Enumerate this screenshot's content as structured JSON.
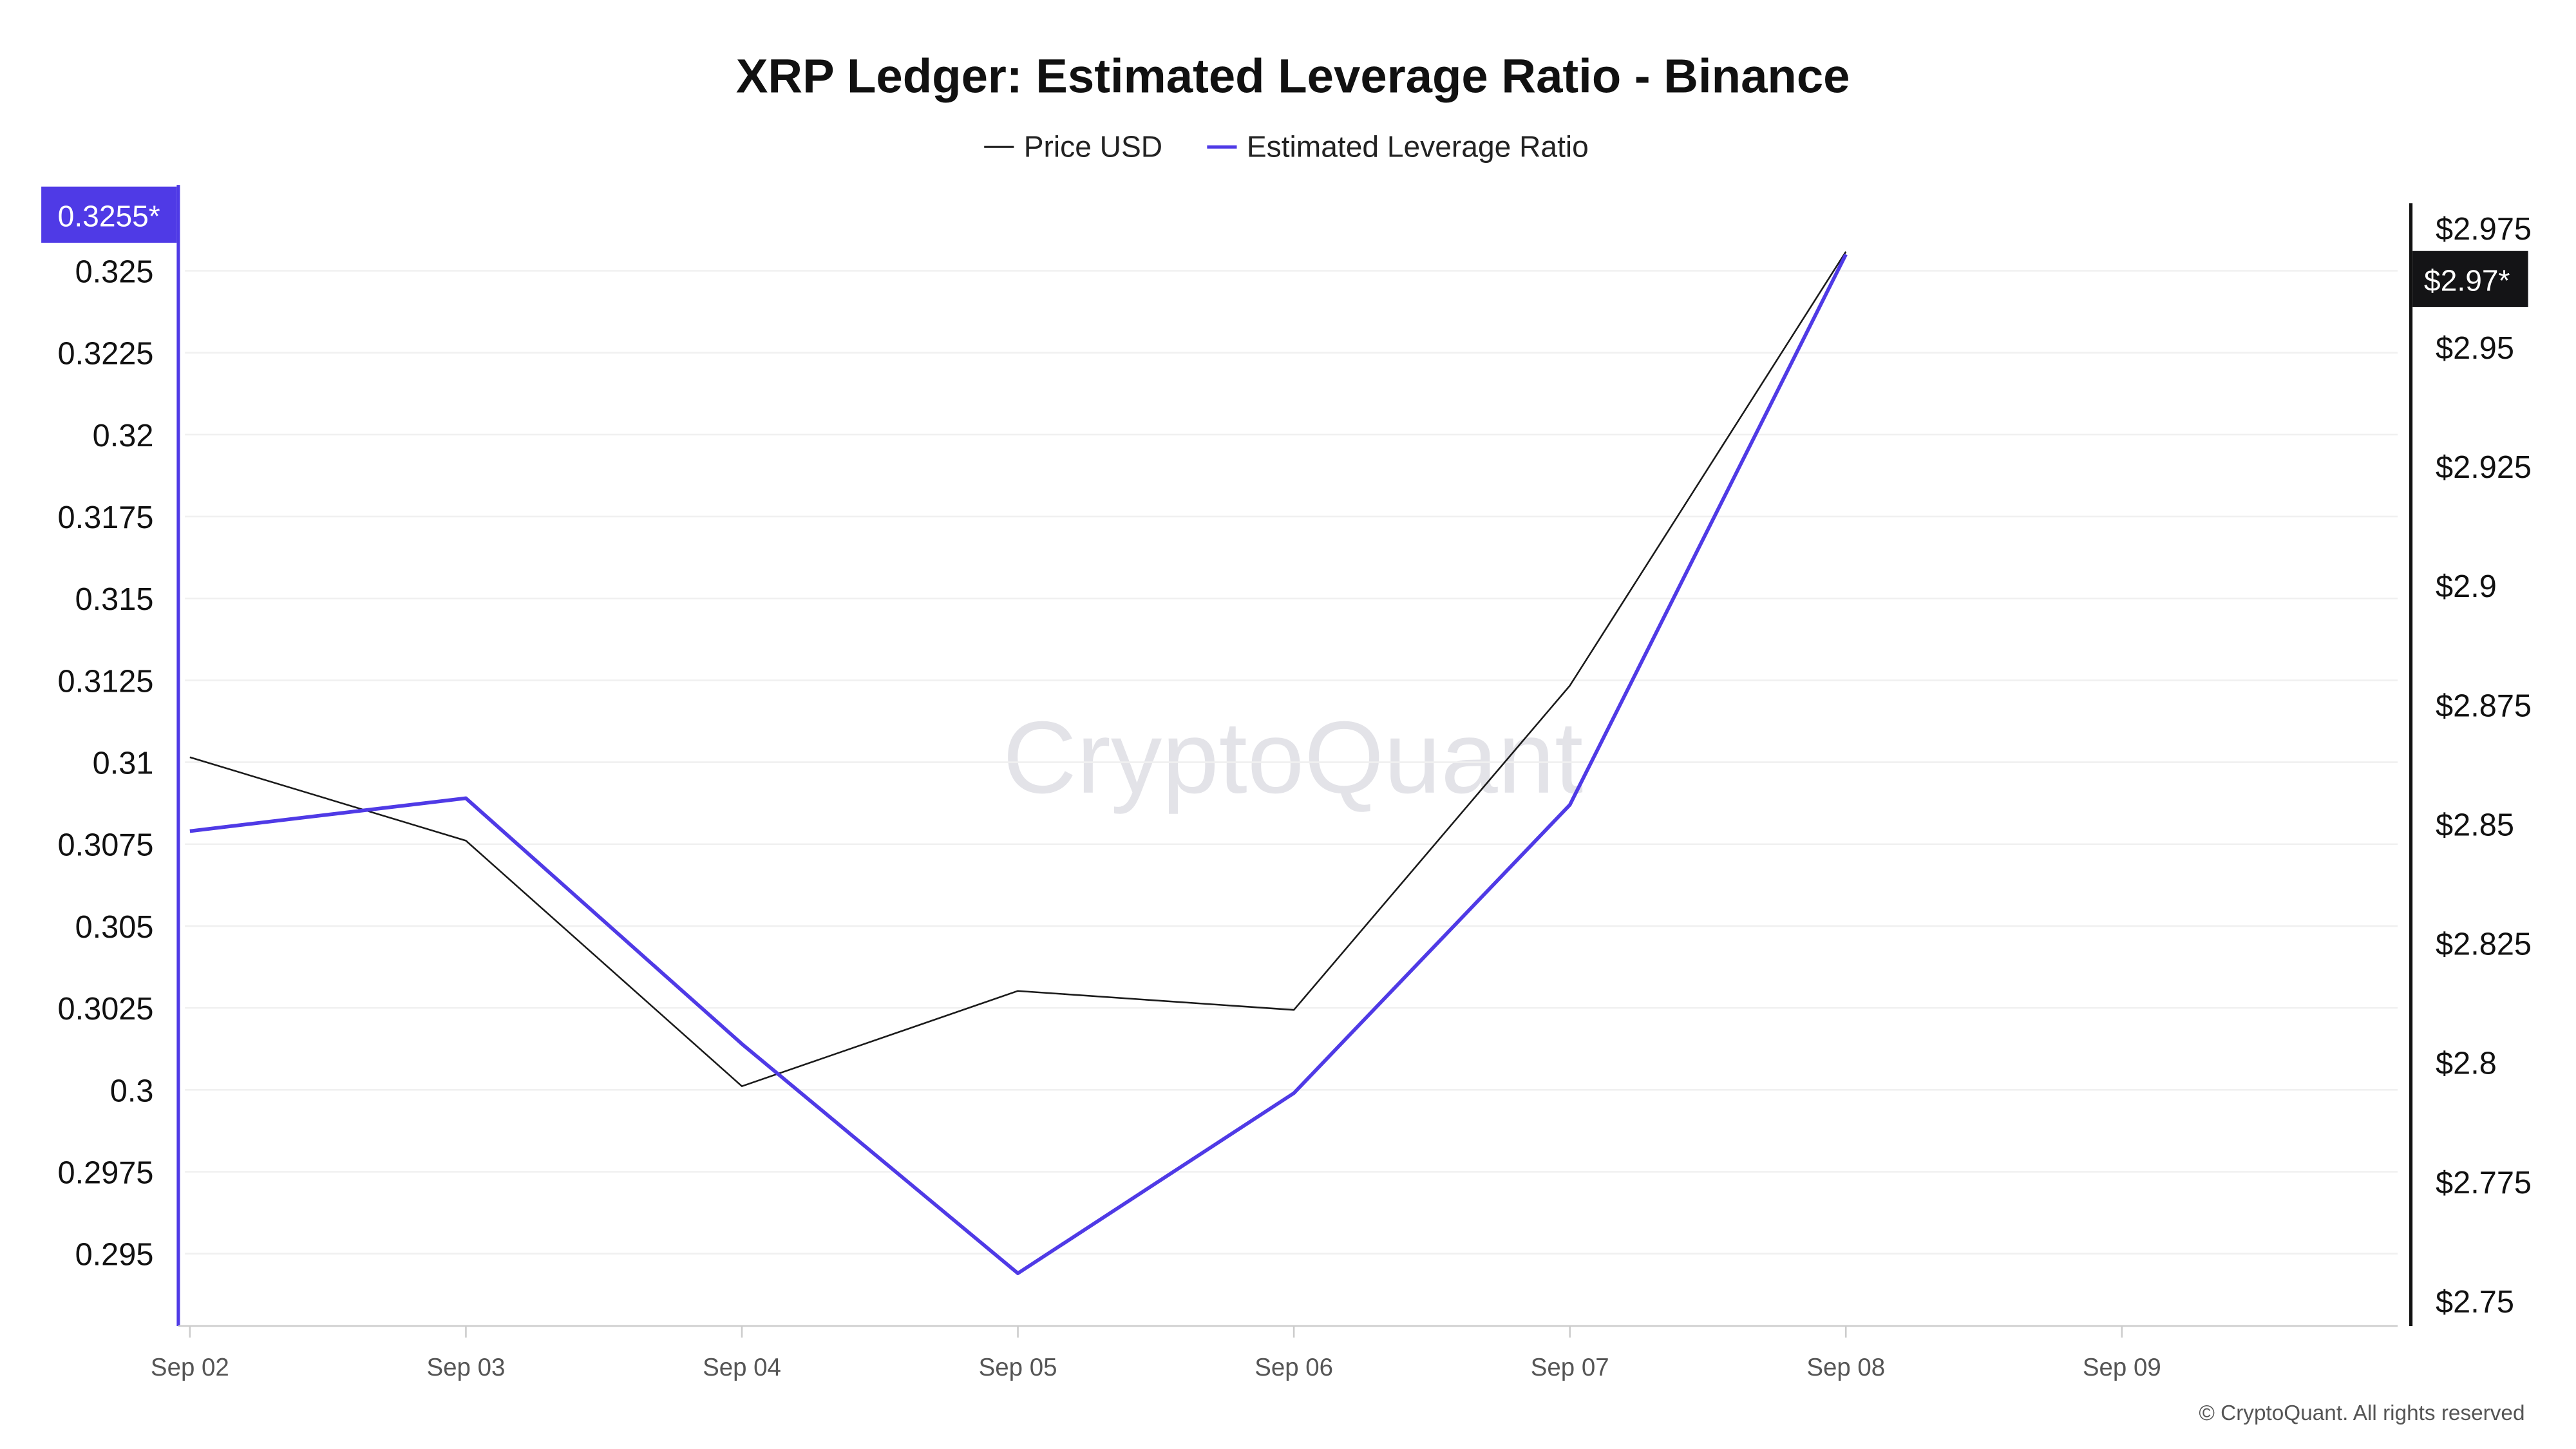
{
  "chart_data": {
    "type": "line",
    "title": "XRP Ledger: Estimated Leverage Ratio - Binance",
    "x": [
      "Sep 02",
      "Sep 03",
      "Sep 04",
      "Sep 05",
      "Sep 06",
      "Sep 07",
      "Sep 08"
    ],
    "x_ticks": [
      "Sep 02",
      "Sep 03",
      "Sep 04",
      "Sep 05",
      "Sep 06",
      "Sep 07",
      "Sep 08",
      "Sep 09"
    ],
    "series": [
      {
        "name": "Price USD",
        "axis": "right",
        "color": "#1a1a1a",
        "values": [
          2.864,
          2.8465,
          2.795,
          2.815,
          2.811,
          2.879,
          2.97
        ]
      },
      {
        "name": "Estimated Leverage Ratio",
        "axis": "left",
        "color": "#4f3ae6",
        "values": [
          0.3079,
          0.3089,
          0.3014,
          0.2944,
          0.2999,
          0.3087,
          0.3255
        ]
      }
    ],
    "y_left": {
      "ticks": [
        "0.325",
        "0.3225",
        "0.32",
        "0.3175",
        "0.315",
        "0.3125",
        "0.31",
        "0.3075",
        "0.305",
        "0.3025",
        "0.3",
        "0.2975",
        "0.295"
      ],
      "range": [
        0.2928,
        0.3262
      ]
    },
    "y_right": {
      "ticks": [
        "$2.975",
        "$2.95",
        "$2.925",
        "$2.9",
        "$2.875",
        "$2.85",
        "$2.825",
        "$2.8",
        "$2.775",
        "$2.75"
      ],
      "range": [
        2.7455,
        2.9795
      ]
    },
    "left_current_label": "0.3255*",
    "right_current_label": "$2.97*",
    "legend_placement": "top-center",
    "grid": true,
    "watermark": "CryptoQuant",
    "footer": "© CryptoQuant. All rights reserved"
  }
}
